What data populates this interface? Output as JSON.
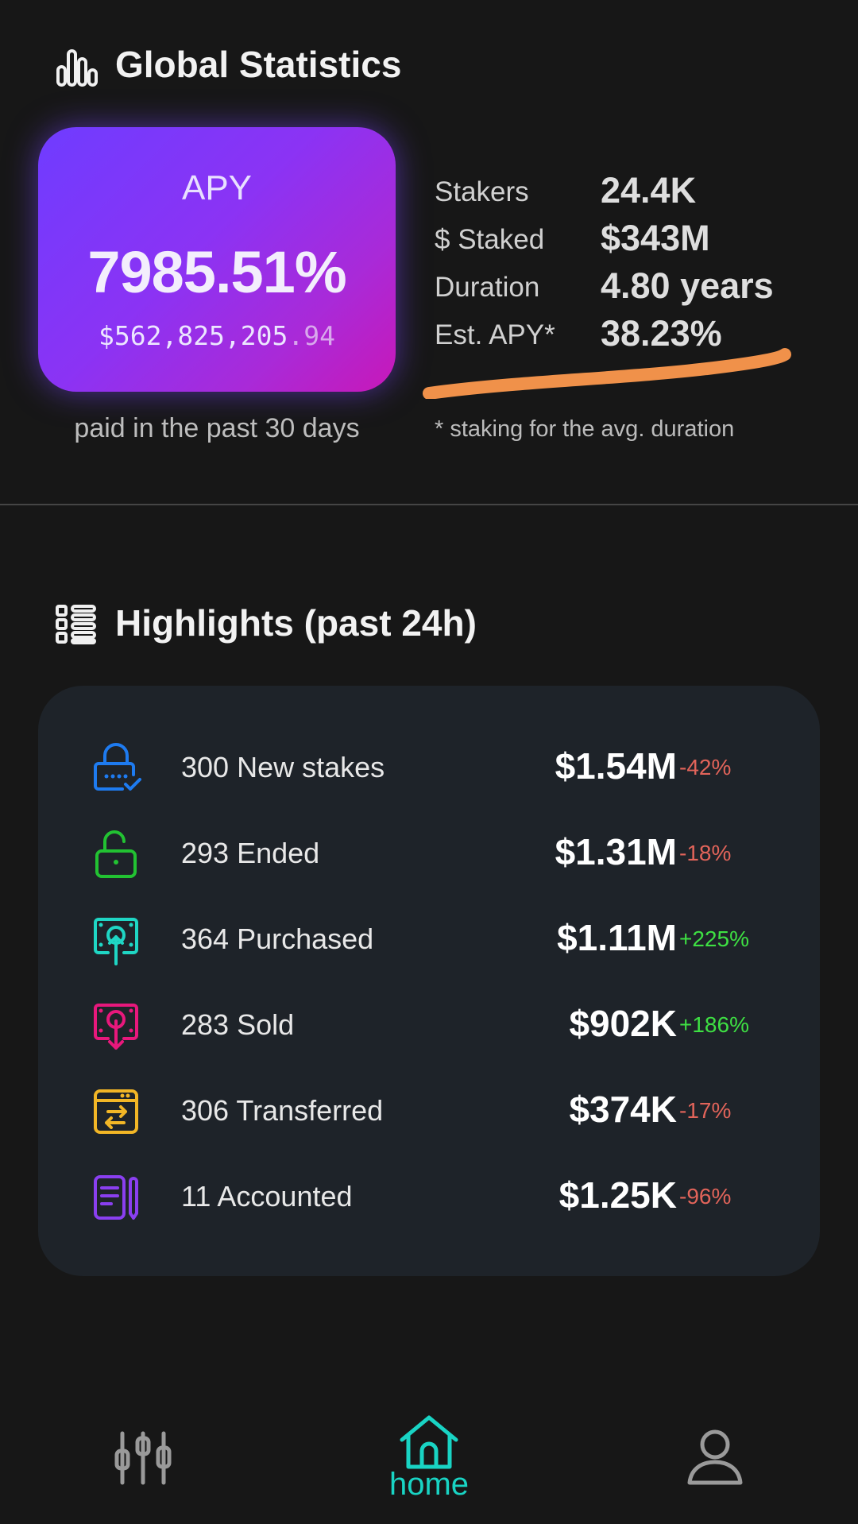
{
  "global_stats": {
    "title": "Global Statistics",
    "icon": "bar-chart-icon",
    "apy_card": {
      "label": "APY",
      "value": "7985.51%",
      "paid_main": "$562,825,205",
      "paid_cents": ".94",
      "caption": "paid in the past 30 days"
    },
    "stats": [
      {
        "label": "Stakers",
        "value": "24.4K"
      },
      {
        "label": "$ Staked",
        "value": "$343M"
      },
      {
        "label": "Duration",
        "value": "4.80 years"
      },
      {
        "label": "Est. APY*",
        "value": "38.23%"
      }
    ],
    "footnote": "* staking for the avg. duration",
    "highlight_color": "#f0914a"
  },
  "highlights": {
    "title": "Highlights (past 24h)",
    "icon": "list-icon",
    "rows": [
      {
        "icon": "lock-check-icon",
        "color": "#1e7bf0",
        "label": "300 New stakes",
        "value": "$1.54M",
        "change": "-42%",
        "trend": "neg"
      },
      {
        "icon": "unlock-icon",
        "color": "#22c232",
        "label": "293 Ended",
        "value": "$1.31M",
        "change": "-18%",
        "trend": "neg"
      },
      {
        "icon": "purchase-icon",
        "color": "#1fd6c4",
        "label": "364 Purchased",
        "value": "$1.11M",
        "change": "+225%",
        "trend": "pos"
      },
      {
        "icon": "sell-icon",
        "color": "#e8187c",
        "label": "283 Sold",
        "value": "$902K",
        "change": "+186%",
        "trend": "pos"
      },
      {
        "icon": "transfer-icon",
        "color": "#f2b626",
        "label": "306 Transferred",
        "value": "$374K",
        "change": "-17%",
        "trend": "neg"
      },
      {
        "icon": "accounting-icon",
        "color": "#8a3ff0",
        "label": "11 Accounted",
        "value": "$1.25K",
        "change": "-96%",
        "trend": "neg"
      }
    ]
  },
  "nav": {
    "home_label": "home",
    "active_color": "#19d4c4",
    "inactive_color": "#9a9a9a"
  }
}
